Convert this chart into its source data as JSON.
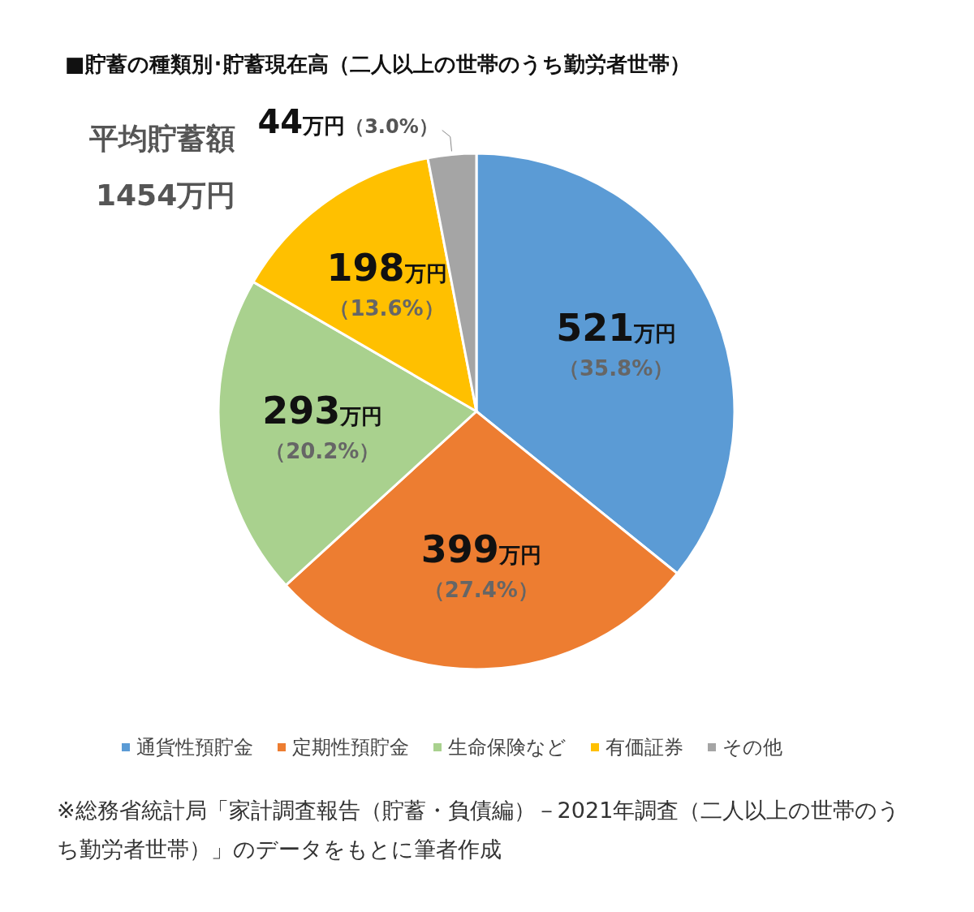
{
  "chart_data": {
    "type": "pie",
    "title": "■貯蓄の種類別･貯蓄現在高（二人以上の世帯のうち勤労者世帯）",
    "categories": [
      "通貨性預貯金",
      "定期性預貯金",
      "生命保険など",
      "有価証券",
      "その他"
    ],
    "values": [
      521,
      399,
      293,
      198,
      44
    ],
    "colors": [
      "#5b9bd5",
      "#ed7d31",
      "#a9d18e",
      "#ffc000",
      "#a5a5a5"
    ],
    "value_labels": [
      "521万円（35.8%）",
      "399万円（27.4%）",
      "293万円（20.2%）",
      "198万円（13.6%）",
      "44万円（3.0%）"
    ],
    "legend": "bottom",
    "annotations": [
      "平均貯蓄額",
      "1454万円",
      "※総務省統計局「家計調査報告（貯蓄・負債編）－2021年調査（二人以上の世帯のうち勤労者世帯）」のデータをもとに筆者作成"
    ]
  }
}
